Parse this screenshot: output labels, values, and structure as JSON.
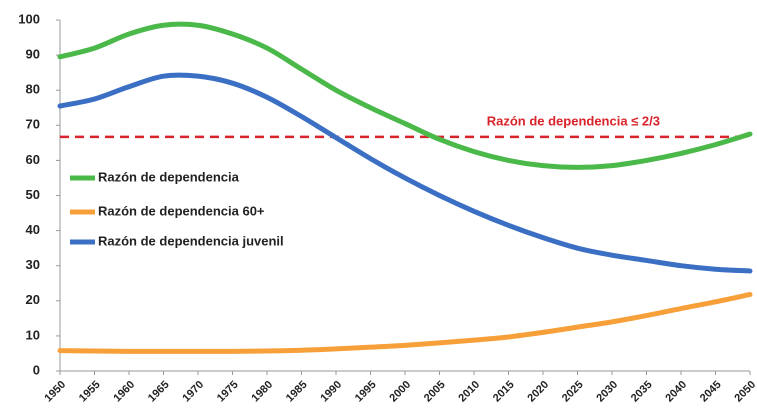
{
  "chart_data": {
    "type": "line",
    "x": [
      1950,
      1955,
      1960,
      1965,
      1970,
      1975,
      1980,
      1985,
      1990,
      1995,
      2000,
      2005,
      2010,
      2015,
      2020,
      2025,
      2030,
      2035,
      2040,
      2045,
      2050
    ],
    "series": [
      {
        "name": "Razón de dependencia",
        "color": "#4bb84a",
        "values": [
          89.5,
          92,
          96,
          98.5,
          98.5,
          96,
          92,
          86,
          80,
          75,
          70.5,
          66,
          62.5,
          60,
          58.5,
          58,
          58.5,
          60,
          62,
          64.5,
          67.5
        ]
      },
      {
        "name": "Razón de dependencia 60+",
        "color": "#f7a03a",
        "values": [
          5.8,
          5.7,
          5.6,
          5.6,
          5.6,
          5.6,
          5.7,
          5.9,
          6.3,
          6.8,
          7.3,
          8,
          8.8,
          9.7,
          11,
          12.5,
          14,
          15.8,
          17.8,
          19.7,
          21.8
        ]
      },
      {
        "name": "Razón de dependencia juvenil",
        "color": "#3a6fc4",
        "values": [
          75.5,
          77.5,
          81,
          84,
          84,
          82,
          78,
          72.5,
          66.5,
          60.5,
          55,
          50,
          45.5,
          41.5,
          38,
          35,
          33,
          31.5,
          30,
          29,
          28.5
        ]
      }
    ],
    "reference_line": {
      "value": 66.7,
      "label": "Razón de dependencia ≤ 2/3",
      "color": "#d9232a"
    },
    "xlim": [
      1950,
      2050
    ],
    "xticks": [
      1950,
      1955,
      1960,
      1965,
      1970,
      1975,
      1980,
      1985,
      1990,
      1995,
      2000,
      2005,
      2010,
      2015,
      2020,
      2025,
      2030,
      2035,
      2040,
      2045,
      2050
    ],
    "ylim": [
      0,
      100
    ],
    "yticks": [
      0,
      10,
      20,
      30,
      40,
      50,
      60,
      70,
      80,
      90,
      100
    ],
    "grid": false,
    "legend": "upper left"
  }
}
